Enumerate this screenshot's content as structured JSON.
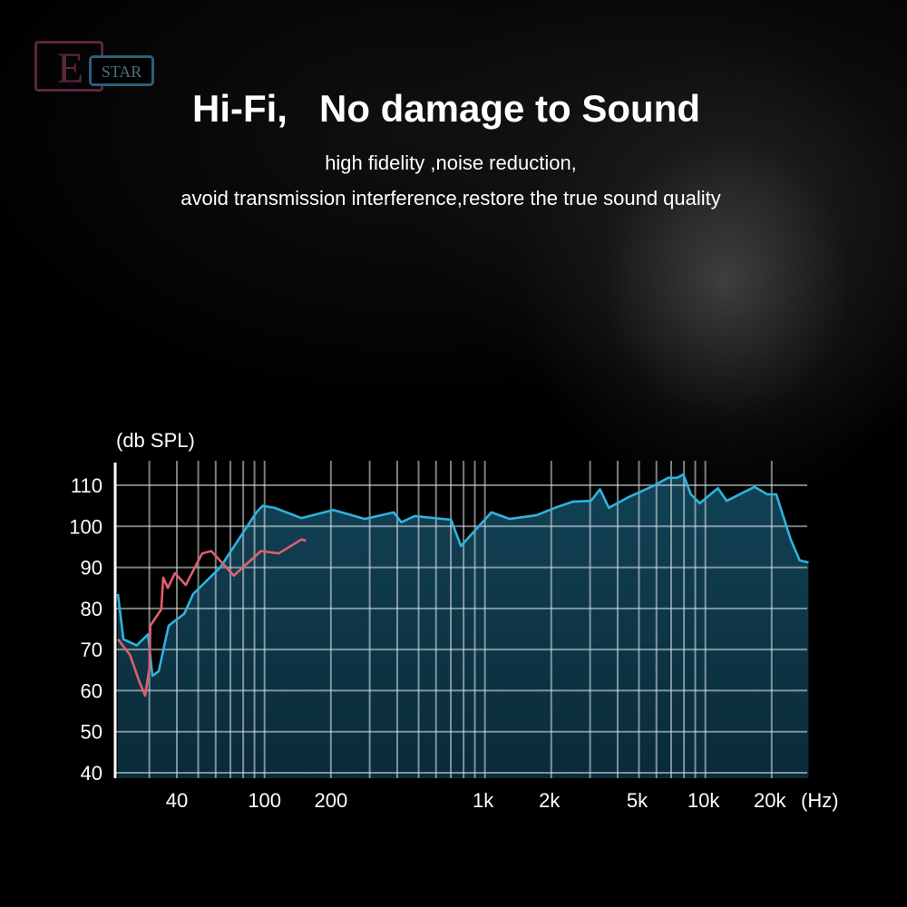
{
  "brand": {
    "logo_letter": "E",
    "logo_text": "STAR"
  },
  "header": {
    "title": "Hi-Fi,   No damage to Sound",
    "subtitle_1": "high fidelity ,noise reduction,",
    "subtitle_2": "avoid transmission interference,restore the true sound quality"
  },
  "chart_data": {
    "type": "area",
    "ylabel": "(db SPL)",
    "xlabel": "(Hz)",
    "x_scale": "log",
    "xlim": [
      21,
      29000
    ],
    "ylim": [
      40,
      110
    ],
    "grid": true,
    "y_ticks": [
      40,
      50,
      60,
      70,
      80,
      90,
      100,
      110
    ],
    "x_ticks": [
      {
        "value": 40,
        "label": "40"
      },
      {
        "value": 100,
        "label": "100"
      },
      {
        "value": 200,
        "label": "200"
      },
      {
        "value": 1000,
        "label": "1k"
      },
      {
        "value": 2000,
        "label": "2k"
      },
      {
        "value": 5000,
        "label": "5k"
      },
      {
        "value": 10000,
        "label": "10k"
      },
      {
        "value": 20000,
        "label": "20k"
      }
    ],
    "series": [
      {
        "color": "#2fb3dc",
        "fill": "#0d3344",
        "x": [
          21.6,
          22.9,
          26.3,
          29.6,
          31,
          33.1,
          36.7,
          43.2,
          47.4,
          62.9,
          91.8,
          98,
          111,
          147,
          205,
          285,
          386,
          417,
          480,
          702,
          778,
          1070,
          1295,
          1715,
          2075,
          2505,
          3030,
          3325,
          3650,
          4440,
          5890,
          6780,
          7440,
          7950,
          8600,
          9430,
          11400,
          12500,
          16700,
          19100,
          21000,
          24400,
          26800,
          29400
        ],
        "y": [
          83.5,
          72.5,
          71,
          73.7,
          63.6,
          64.7,
          75.8,
          78.7,
          83.5,
          90,
          103.4,
          105,
          104.5,
          102,
          104,
          101.8,
          103.4,
          101,
          102.5,
          101.6,
          95.2,
          103.4,
          101.8,
          102.7,
          104.5,
          106,
          106.2,
          109,
          104.5,
          107,
          110,
          111.8,
          111.8,
          112.6,
          107.8,
          105.6,
          109.3,
          106.2,
          109.6,
          107.8,
          107.8,
          96.8,
          91.7,
          91.2
        ]
      },
      {
        "color": "#e0606e",
        "x": [
          21.6,
          24.5,
          26.9,
          28.7,
          30.1,
          30.3,
          34,
          34.7,
          36.4,
          39.2,
          43.9,
          52.1,
          57.3,
          72.5,
          96.3,
          116,
          147,
          154
        ],
        "y": [
          72.5,
          68.7,
          62.5,
          58.8,
          65.8,
          75.8,
          79.8,
          87.5,
          85,
          88.6,
          85.7,
          93.4,
          94,
          88,
          94,
          93.4,
          96.8,
          96.5
        ]
      }
    ]
  }
}
